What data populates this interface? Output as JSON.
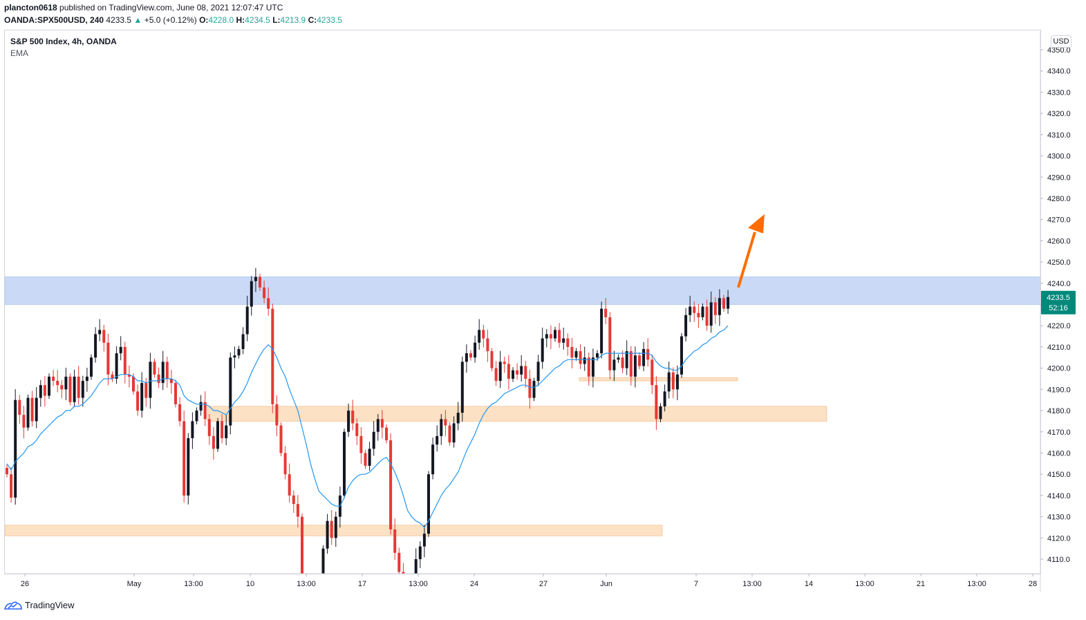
{
  "header": {
    "publisher": "plancton0618",
    "published_text": "published on TradingView.com, June 08, 2021 12:07:47 UTC",
    "symbol": "OANDA:SPX500USD, 240",
    "last": "4233.5",
    "change_arrow": "▲",
    "change": "+5.0 (+0.12%)",
    "o_label": "O:",
    "o_value": "4228.0",
    "h_label": "H:",
    "h_value": "4234.5",
    "l_label": "L:",
    "l_value": "4213.9",
    "c_label": "C:",
    "c_value": "4233.5"
  },
  "legend": {
    "title": "S&P 500 Index, 4h, OANDA",
    "indicator": "EMA"
  },
  "axis": {
    "currency": "USD"
  },
  "price_tag": {
    "value": "4233.5",
    "timer": "52:16"
  },
  "footer": {
    "brand": "TradingView"
  },
  "colors": {
    "up": "#131722",
    "down": "#e53935",
    "ema": "#2196f3",
    "resistance_zone": "#c7d8f5",
    "support_zone": "#fbd9b5",
    "arrow": "#ff6d00",
    "price_tag": "#00897b"
  },
  "chart_data": {
    "type": "candlestick",
    "title": "S&P 500 Index, 4h, OANDA",
    "ylim": [
      4102,
      4358
    ],
    "y_ticks": [
      4110.0,
      4120.0,
      4130.0,
      4140.0,
      4150.0,
      4160.0,
      4170.0,
      4180.0,
      4190.0,
      4200.0,
      4210.0,
      4220.0,
      4230.0,
      4240.0,
      4250.0,
      4260.0,
      4270.0,
      4280.0,
      4290.0,
      4300.0,
      4310.0,
      4320.0,
      4330.0,
      4340.0,
      4350.0
    ],
    "x_ticks": [
      "26",
      "May",
      "13:00",
      "10",
      "13:00",
      "17",
      "13:00",
      "24",
      "27",
      "Jun",
      "7",
      "13:00",
      "14",
      "13:00",
      "21",
      "13:00",
      "28"
    ],
    "closes": [
      4150,
      4139,
      4185,
      4178,
      4172,
      4186,
      4175,
      4186,
      4192,
      4187,
      4196,
      4194,
      4192,
      4190,
      4196,
      4184,
      4196,
      4186,
      4194,
      4196,
      4205,
      4216,
      4218,
      4212,
      4197,
      4195,
      4207,
      4210,
      4197,
      4196,
      4189,
      4180,
      4193,
      4186,
      4203,
      4197,
      4193,
      4203,
      4195,
      4193,
      4183,
      4175,
      4140,
      4167,
      4175,
      4180,
      4184,
      4176,
      4168,
      4162,
      4175,
      4167,
      4173,
      4205,
      4206,
      4209,
      4216,
      4229,
      4241,
      4243,
      4238,
      4233,
      4228,
      4183,
      4173,
      4160,
      4150,
      4140,
      4136,
      4130,
      4100,
      4092,
      4085,
      4088,
      4096,
      4115,
      4128,
      4120,
      4130,
      4140,
      4170,
      4180,
      4174,
      4168,
      4160,
      4154,
      4162,
      4170,
      4176,
      4172,
      4166,
      4124,
      4113,
      4104,
      4090,
      4078,
      4098,
      4110,
      4116,
      4122,
      4150,
      4164,
      4168,
      4176,
      4173,
      4165,
      4174,
      4179,
      4203,
      4207,
      4205,
      4212,
      4218,
      4214,
      4208,
      4200,
      4194,
      4203,
      4202,
      4195,
      4199,
      4197,
      4201,
      4195,
      4186,
      4194,
      4203,
      4214,
      4216,
      4214,
      4218,
      4212,
      4214,
      4210,
      4205,
      4208,
      4202,
      4205,
      4196,
      4205,
      4207,
      4228,
      4224,
      4199,
      4204,
      4205,
      4200,
      4208,
      4196,
      4206,
      4201,
      4209,
      4204,
      4192,
      4176,
      4182,
      4189,
      4198,
      4190,
      4197,
      4215,
      4225,
      4229,
      4226,
      4224,
      4229,
      4220,
      4231,
      4225,
      4233,
      4228,
      4233.5
    ],
    "ema": [
      4155,
      4152,
      4156,
      4158,
      4160,
      4163,
      4164,
      4166,
      4169,
      4171,
      4173,
      4175,
      4177,
      4178,
      4180,
      4180,
      4182,
      4182,
      4183,
      4185,
      4187,
      4190,
      4193,
      4195,
      4195,
      4195,
      4196,
      4197,
      4197,
      4197,
      4196,
      4194,
      4194,
      4193,
      4194,
      4194,
      4194,
      4195,
      4195,
      4195,
      4194,
      4192,
      4187,
      4185,
      4184,
      4183,
      4183,
      4183,
      4182,
      4180,
      4180,
      4179,
      4178,
      4181,
      4184,
      4186,
      4189,
      4193,
      4198,
      4202,
      4206,
      4209,
      4211,
      4209,
      4205,
      4200,
      4196,
      4190,
      4185,
      4180,
      4172,
      4164,
      4155,
      4148,
      4142,
      4140,
      4138,
      4136,
      4135,
      4135,
      4139,
      4144,
      4147,
      4149,
      4150,
      4150,
      4151,
      4153,
      4155,
      4157,
      4158,
      4155,
      4151,
      4146,
      4140,
      4133,
      4130,
      4128,
      4127,
      4125,
      4128,
      4132,
      4136,
      4140,
      4143,
      4145,
      4148,
      4151,
      4156,
      4161,
      4165,
      4169,
      4174,
      4178,
      4181,
      4183,
      4184,
      4186,
      4188,
      4189,
      4190,
      4191,
      4192,
      4192,
      4191,
      4191,
      4192,
      4194,
      4196,
      4198,
      4200,
      4201,
      4203,
      4204,
      4204,
      4204,
      4204,
      4204,
      4204,
      4204,
      4204,
      4206,
      4207,
      4207,
      4207,
      4207,
      4207,
      4207,
      4207,
      4207,
      4207,
      4207,
      4207,
      4206,
      4203,
      4201,
      4200,
      4200,
      4199,
      4199,
      4201,
      4204,
      4206,
      4208,
      4209,
      4211,
      4212,
      4214,
      4215,
      4217,
      4218,
      4220
    ],
    "zones": [
      {
        "name": "resistance",
        "y_low": 4230,
        "y_high": 4243,
        "x_end": "end"
      },
      {
        "name": "support-4180",
        "y_low": 4175,
        "y_high": 4182,
        "x_end": 1196
      },
      {
        "name": "support-4195",
        "y_low": 4194,
        "y_high": 4195.5,
        "x_end": 1067
      },
      {
        "name": "support-4125",
        "y_low": 4121,
        "y_high": 4126,
        "x_end": 958
      }
    ],
    "annotation": {
      "type": "arrow",
      "direction": "up",
      "from_price": 4238,
      "to_price": 4268
    }
  }
}
